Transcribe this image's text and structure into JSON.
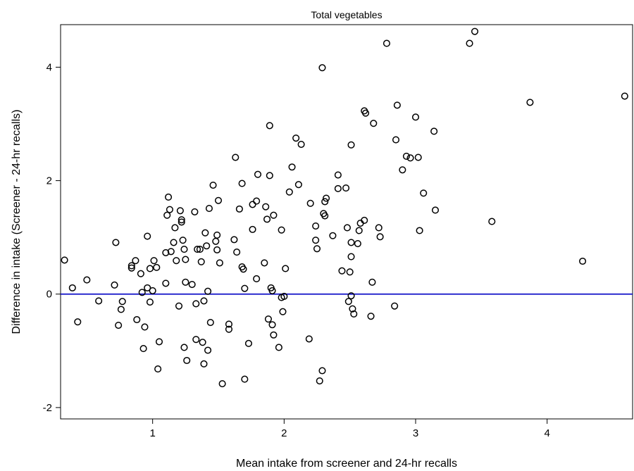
{
  "chart_data": {
    "type": "scatter",
    "title": "Total vegetables",
    "xlabel": "Mean intake from screener and 24-hr recalls",
    "ylabel": "Difference in intake (Screener - 24-hr recalls)",
    "xlim": [
      0.3,
      4.65
    ],
    "ylim": [
      -2.2,
      4.75
    ],
    "xticks": [
      1,
      2,
      3,
      4
    ],
    "yticks": [
      -2,
      0,
      2,
      4
    ],
    "xtick_labels": [
      "1",
      "2",
      "3",
      "4"
    ],
    "ytick_labels": [
      "-2",
      "0",
      "2",
      "4"
    ],
    "reference_line": {
      "y": 0,
      "color": "#1010c8"
    },
    "marker": "open-circle",
    "grid": false,
    "points": [
      [
        0.33,
        0.6
      ],
      [
        0.39,
        0.11
      ],
      [
        0.43,
        -0.49
      ],
      [
        0.5,
        0.25
      ],
      [
        0.59,
        -0.12
      ],
      [
        0.71,
        0.16
      ],
      [
        0.72,
        0.91
      ],
      [
        0.74,
        -0.55
      ],
      [
        0.76,
        -0.27
      ],
      [
        0.77,
        -0.13
      ],
      [
        0.84,
        0.5
      ],
      [
        0.84,
        0.46
      ],
      [
        0.87,
        0.59
      ],
      [
        0.88,
        -0.45
      ],
      [
        0.91,
        0.36
      ],
      [
        0.92,
        0.03
      ],
      [
        0.93,
        -0.96
      ],
      [
        0.94,
        -0.58
      ],
      [
        0.96,
        1.02
      ],
      [
        0.96,
        0.11
      ],
      [
        0.98,
        0.45
      ],
      [
        0.98,
        -0.14
      ],
      [
        1.0,
        0.06
      ],
      [
        1.01,
        0.59
      ],
      [
        1.03,
        0.47
      ],
      [
        1.04,
        -1.32
      ],
      [
        1.05,
        -0.84
      ],
      [
        1.1,
        0.19
      ],
      [
        1.1,
        0.73
      ],
      [
        1.11,
        1.39
      ],
      [
        1.12,
        1.71
      ],
      [
        1.13,
        1.49
      ],
      [
        1.14,
        0.75
      ],
      [
        1.16,
        0.91
      ],
      [
        1.17,
        1.17
      ],
      [
        1.18,
        0.59
      ],
      [
        1.2,
        -0.21
      ],
      [
        1.21,
        1.47
      ],
      [
        1.22,
        1.27
      ],
      [
        1.22,
        1.31
      ],
      [
        1.23,
        0.95
      ],
      [
        1.24,
        0.79
      ],
      [
        1.24,
        -0.94
      ],
      [
        1.25,
        0.21
      ],
      [
        1.25,
        0.61
      ],
      [
        1.26,
        -1.17
      ],
      [
        1.3,
        0.17
      ],
      [
        1.32,
        1.45
      ],
      [
        1.33,
        -0.17
      ],
      [
        1.33,
        -0.8
      ],
      [
        1.34,
        0.79
      ],
      [
        1.36,
        0.79
      ],
      [
        1.37,
        0.57
      ],
      [
        1.38,
        -0.85
      ],
      [
        1.39,
        -0.12
      ],
      [
        1.39,
        -1.23
      ],
      [
        1.4,
        1.08
      ],
      [
        1.41,
        0.85
      ],
      [
        1.42,
        -0.99
      ],
      [
        1.42,
        0.05
      ],
      [
        1.43,
        1.51
      ],
      [
        1.44,
        -0.5
      ],
      [
        1.46,
        1.92
      ],
      [
        1.48,
        0.93
      ],
      [
        1.49,
        0.78
      ],
      [
        1.49,
        1.04
      ],
      [
        1.5,
        1.65
      ],
      [
        1.51,
        0.55
      ],
      [
        1.53,
        -1.58
      ],
      [
        1.58,
        -0.53
      ],
      [
        1.58,
        -0.62
      ],
      [
        1.62,
        0.96
      ],
      [
        1.63,
        2.41
      ],
      [
        1.64,
        0.74
      ],
      [
        1.66,
        1.5
      ],
      [
        1.68,
        1.95
      ],
      [
        1.68,
        0.48
      ],
      [
        1.69,
        0.44
      ],
      [
        1.7,
        -1.5
      ],
      [
        1.7,
        0.1
      ],
      [
        1.73,
        -0.87
      ],
      [
        1.76,
        1.58
      ],
      [
        1.76,
        1.14
      ],
      [
        1.79,
        0.27
      ],
      [
        1.79,
        1.64
      ],
      [
        1.8,
        2.11
      ],
      [
        1.85,
        0.55
      ],
      [
        1.86,
        1.54
      ],
      [
        1.87,
        1.32
      ],
      [
        1.88,
        -0.44
      ],
      [
        1.89,
        2.09
      ],
      [
        1.89,
        2.97
      ],
      [
        1.9,
        0.11
      ],
      [
        1.91,
        -0.54
      ],
      [
        1.91,
        0.06
      ],
      [
        1.92,
        1.39
      ],
      [
        1.92,
        -0.72
      ],
      [
        1.96,
        -0.94
      ],
      [
        1.98,
        1.13
      ],
      [
        1.98,
        -0.06
      ],
      [
        1.99,
        -0.31
      ],
      [
        2.0,
        -0.04
      ],
      [
        2.01,
        0.45
      ],
      [
        2.04,
        1.8
      ],
      [
        2.06,
        2.24
      ],
      [
        2.09,
        2.75
      ],
      [
        2.11,
        1.93
      ],
      [
        2.13,
        2.64
      ],
      [
        2.19,
        -0.79
      ],
      [
        2.2,
        1.6
      ],
      [
        2.24,
        1.2
      ],
      [
        2.24,
        0.95
      ],
      [
        2.25,
        0.8
      ],
      [
        2.27,
        -1.53
      ],
      [
        2.29,
        -1.35
      ],
      [
        2.29,
        3.99
      ],
      [
        2.3,
        1.42
      ],
      [
        2.31,
        1.63
      ],
      [
        2.31,
        1.38
      ],
      [
        2.32,
        1.69
      ],
      [
        2.37,
        1.03
      ],
      [
        2.41,
        1.86
      ],
      [
        2.41,
        2.1
      ],
      [
        2.44,
        0.41
      ],
      [
        2.47,
        1.87
      ],
      [
        2.48,
        1.17
      ],
      [
        2.49,
        -0.13
      ],
      [
        2.5,
        0.39
      ],
      [
        2.51,
        -0.03
      ],
      [
        2.51,
        0.91
      ],
      [
        2.51,
        0.66
      ],
      [
        2.51,
        2.63
      ],
      [
        2.52,
        -0.26
      ],
      [
        2.53,
        -0.35
      ],
      [
        2.56,
        0.89
      ],
      [
        2.57,
        1.12
      ],
      [
        2.58,
        1.25
      ],
      [
        2.61,
        1.3
      ],
      [
        2.61,
        3.23
      ],
      [
        2.62,
        3.19
      ],
      [
        2.66,
        -0.39
      ],
      [
        2.67,
        0.21
      ],
      [
        2.68,
        3.01
      ],
      [
        2.72,
        1.17
      ],
      [
        2.73,
        1.01
      ],
      [
        2.78,
        4.42
      ],
      [
        2.84,
        -0.21
      ],
      [
        2.85,
        2.72
      ],
      [
        2.86,
        3.33
      ],
      [
        2.9,
        2.19
      ],
      [
        2.93,
        2.43
      ],
      [
        2.96,
        2.4
      ],
      [
        3.0,
        3.12
      ],
      [
        3.02,
        2.41
      ],
      [
        3.03,
        1.12
      ],
      [
        3.06,
        1.78
      ],
      [
        3.14,
        2.87
      ],
      [
        3.15,
        1.48
      ],
      [
        3.41,
        4.42
      ],
      [
        3.45,
        4.63
      ],
      [
        3.58,
        1.28
      ],
      [
        3.87,
        3.38
      ],
      [
        4.27,
        0.58
      ],
      [
        4.59,
        3.49
      ]
    ]
  }
}
